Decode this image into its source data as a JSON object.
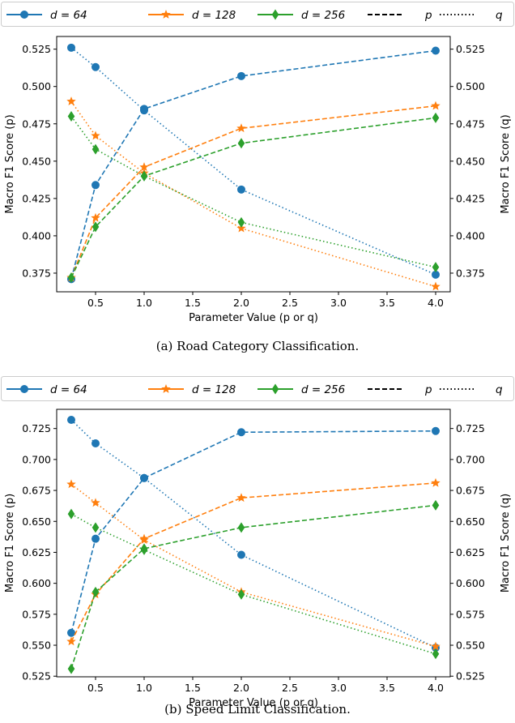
{
  "legend": [
    {
      "label": "d = 64",
      "color": "#1f77b4",
      "marker": "circle",
      "dash": "solid"
    },
    {
      "label": "d = 128",
      "color": "#ff7f0e",
      "marker": "star",
      "dash": "solid"
    },
    {
      "label": "d = 256",
      "color": "#2ca02c",
      "marker": "diamond",
      "dash": "solid"
    },
    {
      "label": "p",
      "color": "#000000",
      "marker": "none",
      "dash": "dashed"
    },
    {
      "label": "q",
      "color": "#000000",
      "marker": "none",
      "dash": "dotted"
    }
  ],
  "chart_data": [
    {
      "type": "line",
      "caption": "(a) Road Category Classification.",
      "xlabel": "Parameter Value (p or q)",
      "ylabel_left": "Macro F1 Score (p)",
      "ylabel_right": "Macro F1 Score (q)",
      "x": [
        0.25,
        0.5,
        1.0,
        2.0,
        4.0
      ],
      "xlim": [
        0.1,
        4.15
      ],
      "xticks": [
        0.5,
        1.0,
        1.5,
        2.0,
        2.5,
        3.0,
        3.5,
        4.0
      ],
      "ylim": [
        0.3625,
        0.5335
      ],
      "yticks": [
        0.375,
        0.4,
        0.425,
        0.45,
        0.475,
        0.5,
        0.525
      ],
      "series": [
        {
          "name": "d = 64, p",
          "color": "#1f77b4",
          "marker": "circle",
          "dash": "dashed",
          "values": [
            0.371,
            0.434,
            0.485,
            0.507,
            0.524
          ]
        },
        {
          "name": "d = 64, q",
          "color": "#1f77b4",
          "marker": "circle",
          "dash": "dotted",
          "values": [
            0.526,
            0.513,
            0.484,
            0.431,
            0.374
          ]
        },
        {
          "name": "d = 128, p",
          "color": "#ff7f0e",
          "marker": "star",
          "dash": "dashed",
          "values": [
            0.372,
            0.412,
            0.446,
            0.472,
            0.487
          ]
        },
        {
          "name": "d = 128, q",
          "color": "#ff7f0e",
          "marker": "star",
          "dash": "dotted",
          "values": [
            0.49,
            0.467,
            0.442,
            0.405,
            0.366
          ]
        },
        {
          "name": "d = 256, p",
          "color": "#2ca02c",
          "marker": "diamond",
          "dash": "dashed",
          "values": [
            0.372,
            0.406,
            0.44,
            0.462,
            0.479
          ]
        },
        {
          "name": "d = 256, q",
          "color": "#2ca02c",
          "marker": "diamond",
          "dash": "dotted",
          "values": [
            0.48,
            0.458,
            0.44,
            0.409,
            0.379
          ]
        }
      ]
    },
    {
      "type": "line",
      "caption": "(b) Speed Limit Classification.",
      "xlabel": "Parameter Value (p or q)",
      "ylabel_left": "Macro F1 Score (p)",
      "ylabel_right": "Macro F1 Score (q)",
      "x": [
        0.25,
        0.5,
        1.0,
        2.0,
        4.0
      ],
      "xlim": [
        0.1,
        4.15
      ],
      "xticks": [
        0.5,
        1.0,
        1.5,
        2.0,
        2.5,
        3.0,
        3.5,
        4.0
      ],
      "ylim": [
        0.5245,
        0.7405
      ],
      "yticks": [
        0.525,
        0.55,
        0.575,
        0.6,
        0.625,
        0.65,
        0.675,
        0.7,
        0.725
      ],
      "series": [
        {
          "name": "d = 64, p",
          "color": "#1f77b4",
          "marker": "circle",
          "dash": "dashed",
          "values": [
            0.56,
            0.636,
            0.685,
            0.722,
            0.723
          ]
        },
        {
          "name": "d = 64, q",
          "color": "#1f77b4",
          "marker": "circle",
          "dash": "dotted",
          "values": [
            0.732,
            0.713,
            0.685,
            0.623,
            0.548
          ]
        },
        {
          "name": "d = 128, p",
          "color": "#ff7f0e",
          "marker": "star",
          "dash": "dashed",
          "values": [
            0.553,
            0.591,
            0.636,
            0.669,
            0.681
          ]
        },
        {
          "name": "d = 128, q",
          "color": "#ff7f0e",
          "marker": "star",
          "dash": "dotted",
          "values": [
            0.68,
            0.665,
            0.635,
            0.593,
            0.549
          ]
        },
        {
          "name": "d = 256, p",
          "color": "#2ca02c",
          "marker": "diamond",
          "dash": "dashed",
          "values": [
            0.531,
            0.593,
            0.628,
            0.645,
            0.663
          ]
        },
        {
          "name": "d = 256, q",
          "color": "#2ca02c",
          "marker": "diamond",
          "dash": "dotted",
          "values": [
            0.656,
            0.645,
            0.627,
            0.591,
            0.543
          ]
        }
      ]
    }
  ]
}
